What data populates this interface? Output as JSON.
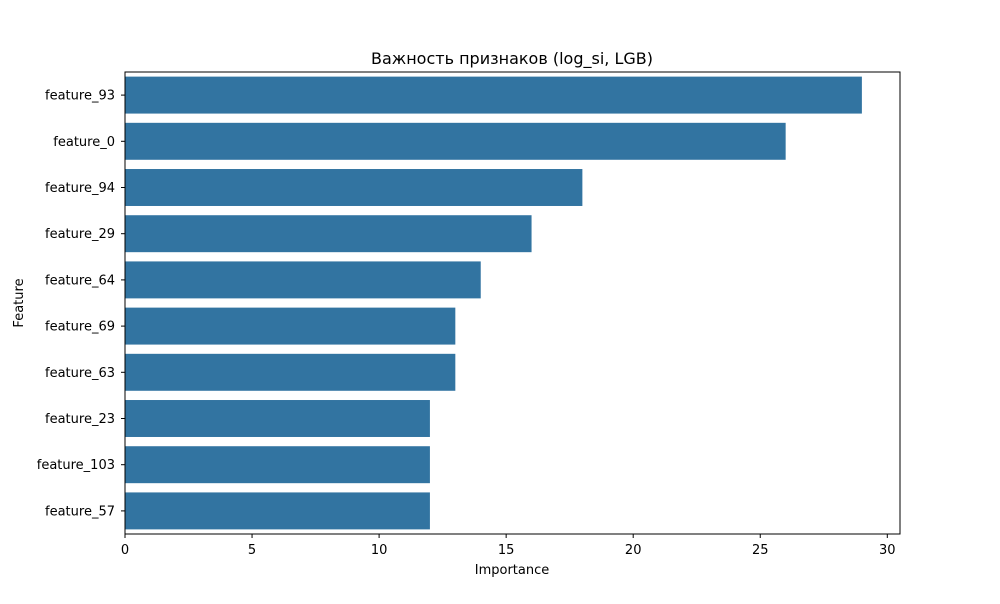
{
  "chart_data": {
    "type": "bar",
    "orientation": "horizontal",
    "title": "Важность признаков (log_si, LGB)",
    "xlabel": "Importance",
    "ylabel": "Feature",
    "categories": [
      "feature_93",
      "feature_0",
      "feature_94",
      "feature_29",
      "feature_64",
      "feature_69",
      "feature_63",
      "feature_23",
      "feature_103",
      "feature_57"
    ],
    "values": [
      29,
      26,
      18,
      16,
      14,
      13,
      13,
      12,
      12,
      12
    ],
    "xlim": [
      0,
      30.5
    ],
    "xticks": [
      0,
      5,
      10,
      15,
      20,
      25,
      30
    ],
    "grid": false,
    "bar_color": "#3274a1"
  }
}
